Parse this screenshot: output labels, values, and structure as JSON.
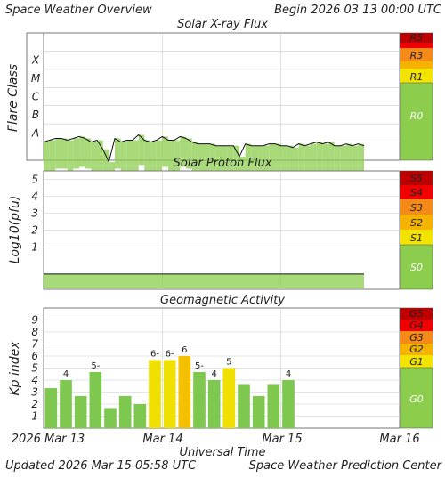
{
  "header": {
    "title": "Space Weather Overview",
    "begin": "Begin 2026 03 13 00:00 UTC",
    "updated": "Updated 2026 Mar 15 05:58 UTC",
    "credit": "Space Weather Prediction Center"
  },
  "x_axis": {
    "label": "Universal Time",
    "ticks": [
      "2026 Mar 13",
      "Mar 14",
      "Mar 15",
      "Mar 16"
    ]
  },
  "colors": {
    "green": "#8ccd4d",
    "yellow": "#f2e300",
    "amber": "#f5b300",
    "orange": "#f58a18",
    "red": "#f00000",
    "darkred": "#c00000",
    "bar_green": "#7ec850",
    "bar_yellow": "#f0e000",
    "bar_amber": "#f5c000"
  },
  "chart_data": [
    {
      "type": "line",
      "title": "Solar X-ray Flux",
      "ylabel": "Flare Class",
      "y_categories": [
        "X",
        "M",
        "C",
        "B",
        "A"
      ],
      "scale_labels": [
        "R5",
        "R3",
        "R1",
        "R0"
      ],
      "x_range_days": [
        0,
        3
      ],
      "x": [
        0,
        0.05,
        0.1,
        0.15,
        0.2,
        0.25,
        0.3,
        0.35,
        0.4,
        0.45,
        0.5,
        0.55,
        0.6,
        0.65,
        0.7,
        0.75,
        0.8,
        0.85,
        0.9,
        0.95,
        1.0,
        1.05,
        1.1,
        1.15,
        1.2,
        1.25,
        1.3,
        1.35,
        1.4,
        1.45,
        1.5,
        1.55,
        1.6,
        1.65,
        1.7,
        1.75,
        1.8,
        1.85,
        1.9,
        1.95,
        2.0,
        2.05,
        2.1,
        2.15,
        2.2,
        2.25,
        2.3,
        2.35,
        2.4,
        2.45,
        2.5,
        2.55,
        2.6,
        2.65,
        2.7
      ],
      "y_class_level": [
        3.5,
        3.6,
        3.7,
        3.7,
        3.6,
        3.7,
        3.8,
        3.7,
        3.5,
        3.6,
        3.1,
        2.4,
        3.7,
        3.5,
        3.6,
        3.6,
        3.9,
        3.6,
        3.5,
        3.6,
        3.8,
        3.6,
        3.6,
        3.8,
        3.7,
        3.5,
        3.4,
        3.4,
        3.4,
        3.3,
        3.3,
        3.3,
        3.3,
        2.7,
        3.4,
        3.3,
        3.3,
        3.3,
        3.4,
        3.4,
        3.3,
        3.3,
        3.2,
        3.4,
        3.3,
        3.4,
        3.5,
        3.4,
        3.5,
        3.3,
        3.3,
        3.4,
        3.3,
        3.4,
        3.3
      ]
    },
    {
      "type": "line",
      "title": "Solar Proton Flux",
      "ylabel": "Log10(pfu)",
      "y_ticks": [
        "5",
        "4",
        "3",
        "2",
        "1"
      ],
      "ylim": [
        -1.5,
        5.5
      ],
      "scale_labels": [
        "S5",
        "S4",
        "S3",
        "S2",
        "S1",
        "S0"
      ],
      "x_range_days": [
        0,
        3
      ],
      "x": [
        0,
        2.7
      ],
      "values": [
        -0.6,
        -0.6
      ]
    },
    {
      "type": "bar",
      "title": "Geomagnetic Activity",
      "ylabel": "Kp index",
      "y_ticks": [
        "9",
        "8",
        "7",
        "6",
        "5",
        "4",
        "3",
        "2",
        "1"
      ],
      "ylim": [
        0,
        10
      ],
      "scale_labels": [
        "G5",
        "G4",
        "G3",
        "G2",
        "G1",
        "G0"
      ],
      "values": [
        3.33,
        4.0,
        2.67,
        4.67,
        1.67,
        2.67,
        2.0,
        5.67,
        5.67,
        6.0,
        4.67,
        4.0,
        5.0,
        3.67,
        2.67,
        3.67,
        4.0
      ],
      "bar_labels": [
        "",
        "4",
        "",
        "5-",
        "",
        "",
        "",
        "6-",
        "6-",
        "6",
        "5-",
        "4",
        "5",
        "",
        "",
        "",
        "4"
      ]
    }
  ]
}
